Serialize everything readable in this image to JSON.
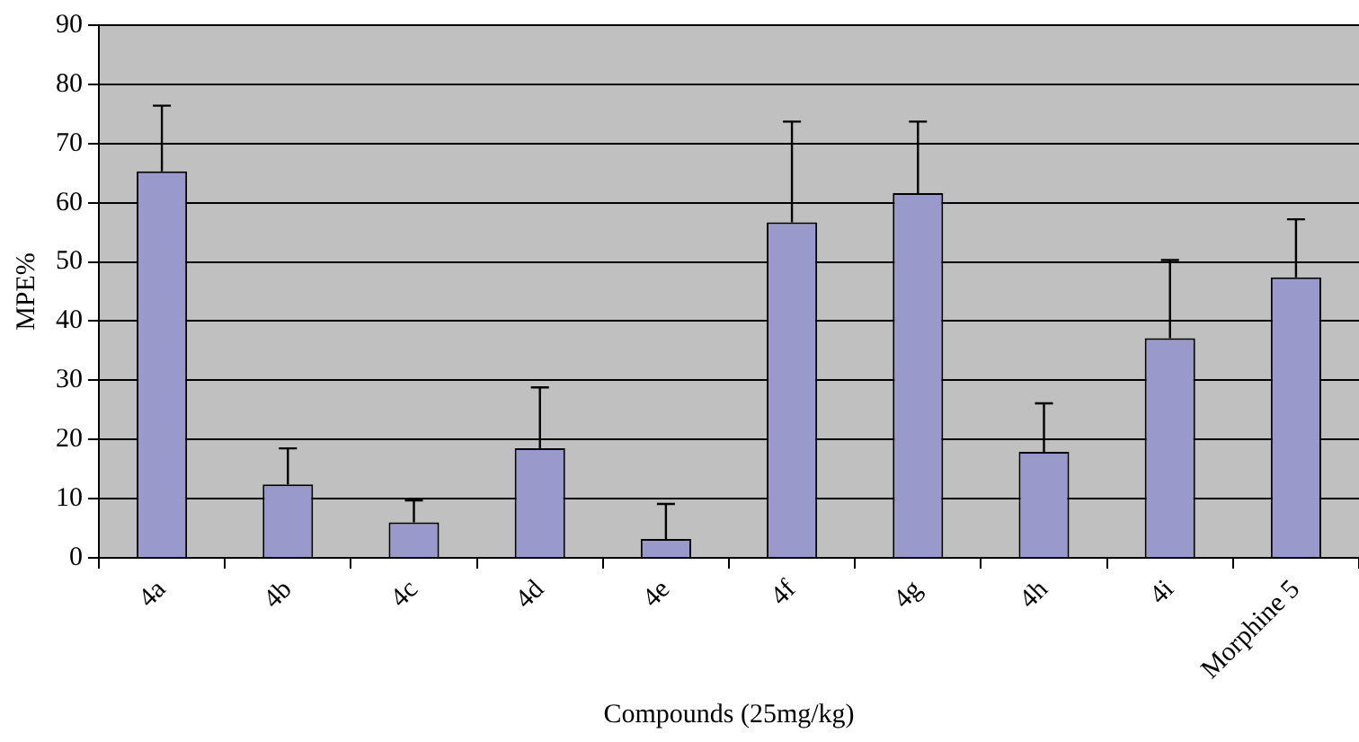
{
  "chart_data": {
    "type": "bar",
    "xlabel": "Compounds (25mg/kg)",
    "ylabel": "MPE%",
    "categories": [
      "4a",
      "4b",
      "4c",
      "4d",
      "4e",
      "4f",
      "4g",
      "4h",
      "4i",
      "Morphine 5"
    ],
    "values": [
      65.3,
      12.4,
      6,
      18.5,
      3.2,
      56.7,
      61.6,
      17.9,
      37.1,
      47.4
    ],
    "errors": [
      [
        65.3,
        76.4
      ],
      [
        12.4,
        18.5
      ],
      [
        6,
        9.7
      ],
      [
        18.5,
        28.8
      ],
      [
        3.2,
        9.1
      ],
      [
        56.7,
        73.7
      ],
      [
        61.6,
        73.7
      ],
      [
        17.9,
        26.1
      ],
      [
        37.1,
        50.3
      ],
      [
        47.4,
        57.2
      ]
    ],
    "color": "#9999cc",
    "ylim": [
      0,
      90
    ],
    "yticks": [
      0,
      10,
      20,
      30,
      40,
      50,
      60,
      70,
      80,
      90
    ],
    "grid": "y",
    "legend": false
  }
}
